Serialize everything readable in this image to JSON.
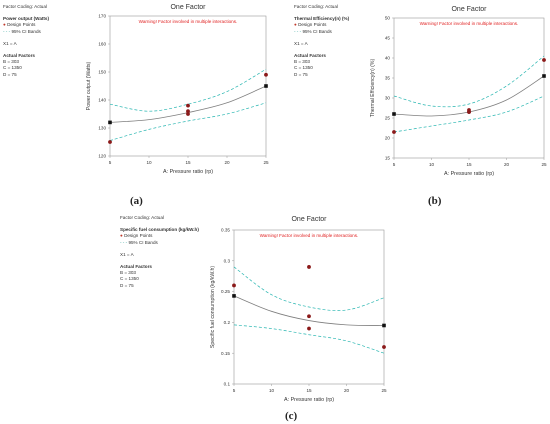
{
  "panels": [
    {
      "letter": "(a)",
      "legend": {
        "coding": "Factor Coding: Actual",
        "response": "Power output (Watts)",
        "design_points": "Design Points",
        "ci_bands": "95% CI Bands",
        "x1": "X1 = A",
        "actual_factors_title": "Actual Factors",
        "factors": [
          "B = 303",
          "C = 1350",
          "D = 75"
        ]
      }
    },
    {
      "letter": "(b)",
      "legend": {
        "coding": "Factor Coding: Actual",
        "response": "Thermal Efficiency(n) (%)",
        "design_points": "Design Points",
        "ci_bands": "95% CI Bands",
        "x1": "X1 = A",
        "actual_factors_title": "Actual Factors",
        "factors": [
          "B = 303",
          "C = 1350",
          "D = 75"
        ]
      }
    },
    {
      "letter": "(c)",
      "legend": {
        "coding": "Factor Coding: Actual",
        "response": "Specific fuel consumption (kg/kW.h)",
        "design_points": "Design Points",
        "ci_bands": "95% CI Bands",
        "x1": "X1 = A",
        "actual_factors_title": "Actual Factors",
        "factors": [
          "B = 303",
          "C = 1350",
          "D = 75"
        ]
      }
    }
  ],
  "chart_data": [
    {
      "type": "line",
      "title": "One Factor",
      "warning": "Warning! Factor involved in multiple interactions.",
      "xlabel": "A: Pressure ratio (rp)",
      "ylabel": "Power output (Watts)",
      "xlim": [
        5,
        25
      ],
      "ylim": [
        120,
        170
      ],
      "xticks": [
        "5",
        "10",
        "15",
        "20",
        "25"
      ],
      "yticks": [
        "120",
        "130",
        "140",
        "150",
        "160",
        "170"
      ],
      "x": [
        5,
        10,
        15,
        20,
        25
      ],
      "fit": [
        132,
        133,
        135.5,
        139,
        145
      ],
      "ci_upper": [
        138.5,
        136,
        138.5,
        143,
        151
      ],
      "ci_lower": [
        125.5,
        129.5,
        132.5,
        135,
        139
      ],
      "design_points": {
        "x": [
          5,
          15,
          15,
          15,
          25
        ],
        "y": [
          125,
          138,
          135,
          136,
          149
        ]
      },
      "end_markers": {
        "x": [
          5,
          25
        ],
        "y": [
          132,
          145
        ]
      },
      "colors": {
        "fit": "#7f7f7f",
        "ci": "#26b5b0",
        "points": "#8b1a1a",
        "warning": "#e02020"
      }
    },
    {
      "type": "line",
      "title": "One Factor",
      "warning": "Warning! Factor involved in multiple interactions.",
      "xlabel": "A: Pressure ratio (rp)",
      "ylabel": "Thermal Efficiency(n) (%)",
      "xlim": [
        5,
        25
      ],
      "ylim": [
        15,
        50
      ],
      "xticks": [
        "5",
        "10",
        "15",
        "20",
        "25"
      ],
      "yticks": [
        "15",
        "20",
        "25",
        "30",
        "35",
        "40",
        "45",
        "50"
      ],
      "x": [
        5,
        10,
        15,
        20,
        25
      ],
      "fit": [
        26,
        25.5,
        26.5,
        29.5,
        35.5
      ],
      "ci_upper": [
        30.5,
        28,
        28.5,
        33,
        40.5
      ],
      "ci_lower": [
        21.5,
        23,
        24.5,
        26.5,
        30.5
      ],
      "design_points": {
        "x": [
          5,
          15,
          15,
          15,
          25
        ],
        "y": [
          21.5,
          27,
          26.5,
          26.5,
          39.5
        ]
      },
      "end_markers": {
        "x": [
          5,
          25
        ],
        "y": [
          26,
          35.5
        ]
      },
      "colors": {
        "fit": "#7f7f7f",
        "ci": "#26b5b0",
        "points": "#8b1a1a",
        "warning": "#e02020"
      }
    },
    {
      "type": "line",
      "title": "One Factor",
      "warning": "Warning! Factor involved in multiple interactions.",
      "xlabel": "A: Pressure ratio (rp)",
      "ylabel": "Specific fuel consumption (kg/kW.h)",
      "xlim": [
        5,
        25
      ],
      "ylim": [
        0.1,
        0.35
      ],
      "xticks": [
        "5",
        "10",
        "15",
        "20",
        "25"
      ],
      "yticks": [
        "0.1",
        "0.15",
        "0.2",
        "0.25",
        "0.3",
        "0.35"
      ],
      "x": [
        5,
        10,
        15,
        20,
        25
      ],
      "fit": [
        0.243,
        0.218,
        0.203,
        0.196,
        0.195
      ],
      "ci_upper": [
        0.29,
        0.245,
        0.225,
        0.22,
        0.24
      ],
      "ci_lower": [
        0.196,
        0.19,
        0.18,
        0.17,
        0.15
      ],
      "design_points": {
        "x": [
          5,
          15,
          15,
          15,
          25
        ],
        "y": [
          0.26,
          0.29,
          0.21,
          0.19,
          0.16
        ]
      },
      "end_markers": {
        "x": [
          5,
          25
        ],
        "y": [
          0.243,
          0.195
        ]
      },
      "colors": {
        "fit": "#7f7f7f",
        "ci": "#26b5b0",
        "points": "#8b1a1a",
        "warning": "#e02020"
      }
    }
  ]
}
